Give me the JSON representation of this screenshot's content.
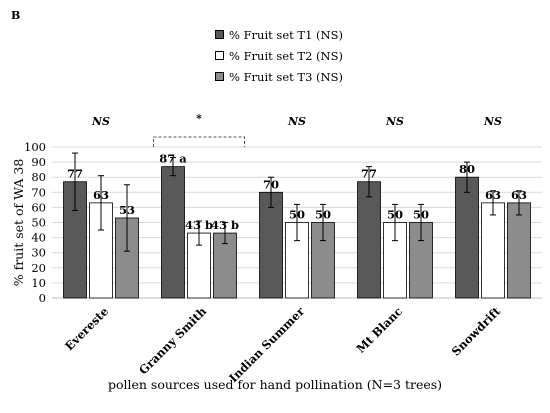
{
  "panel_label": "B",
  "colors": {
    "T1": "#595959",
    "T2": "#ffffff",
    "T3": "#8c8c8c"
  },
  "chart_data": {
    "type": "bar",
    "title": "",
    "xlabel": "pollen sources used for hand pollination (N=3 trees)",
    "ylabel": "% fruit set of WA 38",
    "ylim": [
      0,
      100
    ],
    "yticks": [
      0,
      10,
      20,
      30,
      40,
      50,
      60,
      70,
      80,
      90,
      100
    ],
    "grid": "horizontal",
    "legend_position": "top-center",
    "categories": [
      "Evereste",
      "Granny Smith",
      "Indian Summer",
      "Mt Blanc",
      "Snowdrift"
    ],
    "series": [
      {
        "name": "% Fruit set T1 (NS)",
        "values": [
          77,
          87,
          70,
          77,
          80
        ],
        "errors": [
          19,
          6,
          10,
          10,
          10
        ],
        "labels": [
          "77",
          "87 a",
          "70",
          "77",
          "80"
        ]
      },
      {
        "name": "% Fruit set T2 (NS)",
        "values": [
          63,
          43,
          50,
          50,
          63
        ],
        "errors": [
          18,
          8,
          12,
          12,
          8
        ],
        "labels": [
          "63",
          "43 b",
          "50",
          "50",
          "63"
        ]
      },
      {
        "name": "% Fruit set T3 (NS)",
        "values": [
          53,
          43,
          50,
          50,
          63
        ],
        "errors": [
          22,
          7,
          12,
          12,
          8
        ],
        "labels": [
          "53",
          "43 b",
          "50",
          "50",
          "63"
        ]
      }
    ],
    "significance": [
      "NS",
      "*",
      "NS",
      "NS",
      "NS"
    ]
  }
}
